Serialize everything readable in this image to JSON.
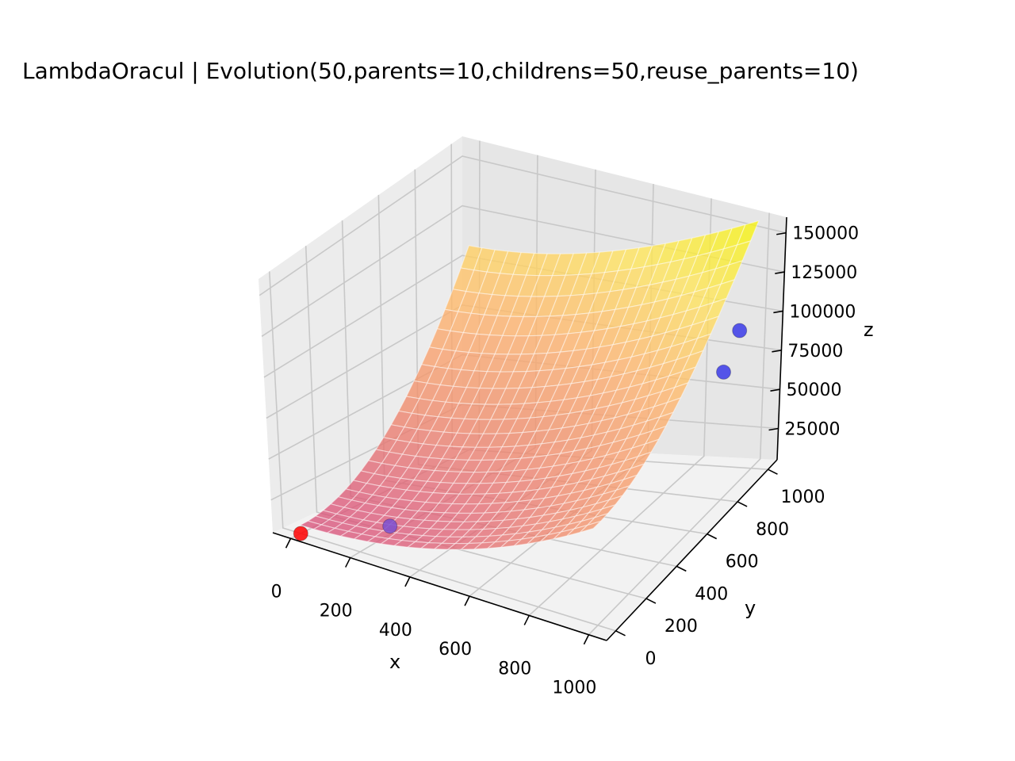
{
  "chart_data": {
    "type": "surface3d",
    "title": "LambdaOracul | Evolution(50,parents=10,childrens=50,reuse_parents=10)",
    "xlabel": "x",
    "ylabel": "y",
    "zlabel": "z",
    "xlim": [
      -60,
      1060
    ],
    "ylim": [
      -60,
      1060
    ],
    "zlim": [
      5000,
      160000
    ],
    "x_ticks": [
      0,
      200,
      400,
      600,
      800,
      1000
    ],
    "y_ticks": [
      0,
      200,
      400,
      600,
      800,
      1000
    ],
    "z_ticks": [
      25000,
      50000,
      75000,
      100000,
      125000,
      150000
    ],
    "x_tick_labels": [
      "0",
      "200",
      "400",
      "600",
      "800",
      "1000"
    ],
    "y_tick_labels": [
      "0",
      "200",
      "400",
      "600",
      "800",
      "1000"
    ],
    "z_tick_labels": [
      "25000",
      "50000",
      "75000",
      "100000",
      "125000",
      "150000"
    ],
    "surface": {
      "function": "z = x^2/20 + y^2/10 + 10000 (approx.)",
      "x_range": [
        0,
        1000
      ],
      "y_range": [
        0,
        1000
      ],
      "colormap": "spring-to-yellow (magma-like, translucent)",
      "colors": [
        "#d9527a",
        "#f08a6a",
        "#ffb36b",
        "#ffe45a",
        "#f5f500"
      ]
    },
    "points": [
      {
        "x": 0,
        "y": 0,
        "z": 5000,
        "color": "#ff0000"
      },
      {
        "x": 230,
        "y": 130,
        "z": 14000,
        "color": "#7a4fd0"
      },
      {
        "x": 960,
        "y": 880,
        "z": 75000,
        "color": "#3a3ae8"
      },
      {
        "x": 990,
        "y": 920,
        "z": 98000,
        "color": "#3a3ae8"
      }
    ],
    "grid": true,
    "legend": "none"
  }
}
